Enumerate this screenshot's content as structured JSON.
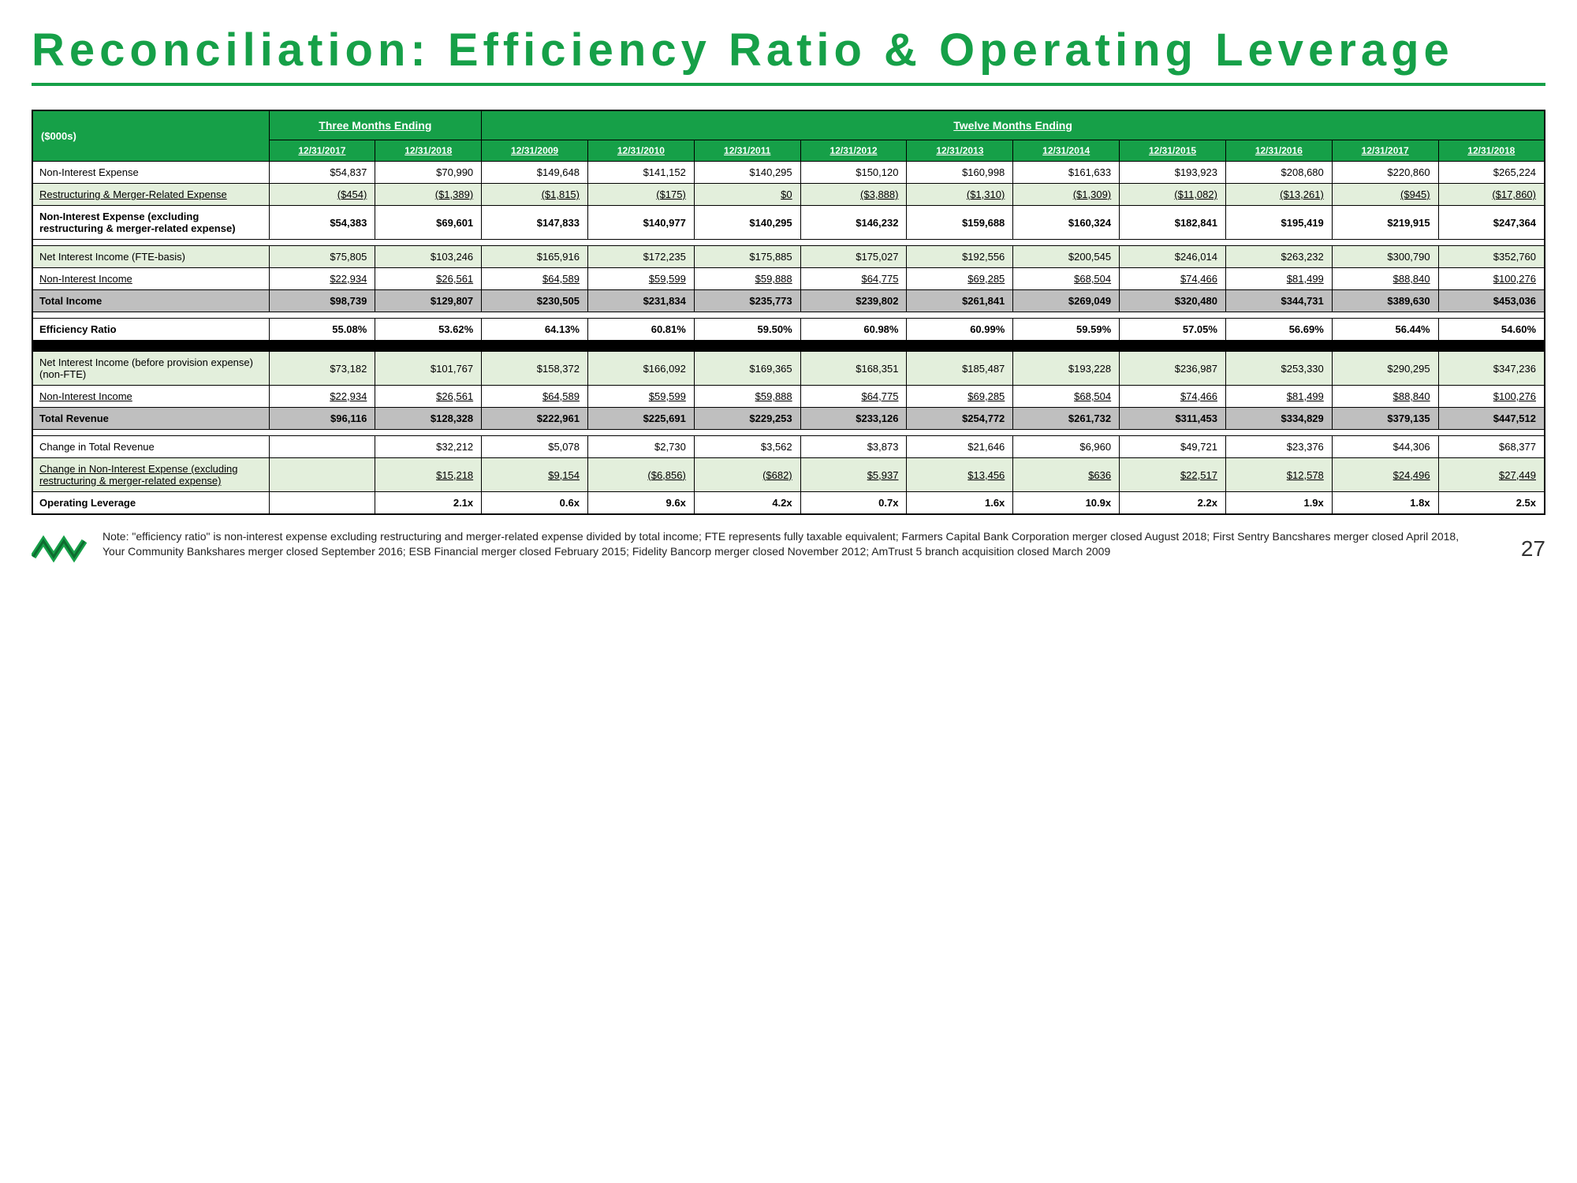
{
  "title": "Reconciliation: Efficiency Ratio & Operating Leverage",
  "units_label": "($000s)",
  "period_headers": {
    "three_month": "Three Months Ending",
    "twelve_month": "Twelve Months Ending"
  },
  "date_cols": [
    "12/31/2017",
    "12/31/2018",
    "12/31/2009",
    "12/31/2010",
    "12/31/2011",
    "12/31/2012",
    "12/31/2013",
    "12/31/2014",
    "12/31/2015",
    "12/31/2016",
    "12/31/2017",
    "12/31/2018"
  ],
  "rows": {
    "non_interest_expense": {
      "label": "Non-Interest Expense",
      "vals": [
        "$54,837",
        "$70,990",
        "$149,648",
        "$141,152",
        "$140,295",
        "$150,120",
        "$160,998",
        "$161,633",
        "$193,923",
        "$208,680",
        "$220,860",
        "$265,224"
      ]
    },
    "restructuring": {
      "label": "Restructuring & Merger-Related Expense",
      "vals": [
        "($454)",
        "($1,389)",
        "($1,815)",
        "($175)",
        "$0",
        "($3,888)",
        "($1,310)",
        "($1,309)",
        "($11,082)",
        "($13,261)",
        "($945)",
        "($17,860)"
      ]
    },
    "nie_excl": {
      "label": "Non-Interest Expense (excluding restructuring & merger-related expense)",
      "vals": [
        "$54,383",
        "$69,601",
        "$147,833",
        "$140,977",
        "$140,295",
        "$146,232",
        "$159,688",
        "$160,324",
        "$182,841",
        "$195,419",
        "$219,915",
        "$247,364"
      ]
    },
    "nii_fte": {
      "label": "Net Interest Income (FTE-basis)",
      "vals": [
        "$75,805",
        "$103,246",
        "$165,916",
        "$172,235",
        "$175,885",
        "$175,027",
        "$192,556",
        "$200,545",
        "$246,014",
        "$263,232",
        "$300,790",
        "$352,760"
      ]
    },
    "non_int_income1": {
      "label": "Non-Interest Income",
      "vals": [
        "$22,934",
        "$26,561",
        "$64,589",
        "$59,599",
        "$59,888",
        "$64,775",
        "$69,285",
        "$68,504",
        "$74,466",
        "$81,499",
        "$88,840",
        "$100,276"
      ]
    },
    "total_income": {
      "label": "Total Income",
      "vals": [
        "$98,739",
        "$129,807",
        "$230,505",
        "$231,834",
        "$235,773",
        "$239,802",
        "$261,841",
        "$269,049",
        "$320,480",
        "$344,731",
        "$389,630",
        "$453,036"
      ]
    },
    "eff_ratio": {
      "label": "Efficiency Ratio",
      "vals": [
        "55.08%",
        "53.62%",
        "64.13%",
        "60.81%",
        "59.50%",
        "60.98%",
        "60.99%",
        "59.59%",
        "57.05%",
        "56.69%",
        "56.44%",
        "54.60%"
      ]
    },
    "nii_prov": {
      "label": "Net Interest Income (before provision expense)(non-FTE)",
      "vals": [
        "$73,182",
        "$101,767",
        "$158,372",
        "$166,092",
        "$169,365",
        "$168,351",
        "$185,487",
        "$193,228",
        "$236,987",
        "$253,330",
        "$290,295",
        "$347,236"
      ]
    },
    "non_int_income2": {
      "label": "Non-Interest Income",
      "vals": [
        "$22,934",
        "$26,561",
        "$64,589",
        "$59,599",
        "$59,888",
        "$64,775",
        "$69,285",
        "$68,504",
        "$74,466",
        "$81,499",
        "$88,840",
        "$100,276"
      ]
    },
    "total_revenue": {
      "label": "Total Revenue",
      "vals": [
        "$96,116",
        "$128,328",
        "$222,961",
        "$225,691",
        "$229,253",
        "$233,126",
        "$254,772",
        "$261,732",
        "$311,453",
        "$334,829",
        "$379,135",
        "$447,512"
      ]
    },
    "chg_revenue": {
      "label": "Change in Total Revenue",
      "vals": [
        "",
        "$32,212",
        "$5,078",
        "$2,730",
        "$3,562",
        "$3,873",
        "$21,646",
        "$6,960",
        "$49,721",
        "$23,376",
        "$44,306",
        "$68,377"
      ]
    },
    "chg_nie": {
      "label": "Change in Non-Interest Expense (excluding restructuring & merger-related expense)",
      "vals": [
        "",
        "$15,218",
        "$9,154",
        "($6,856)",
        "($682)",
        "$5,937",
        "$13,456",
        "$636",
        "$22,517",
        "$12,578",
        "$24,496",
        "$27,449"
      ]
    },
    "op_leverage": {
      "label": "Operating Leverage",
      "vals": [
        "",
        "2.1x",
        "0.6x",
        "9.6x",
        "4.2x",
        "0.7x",
        "1.6x",
        "10.9x",
        "2.2x",
        "1.9x",
        "1.8x",
        "2.5x"
      ]
    }
  },
  "footnote": "Note: \"efficiency ratio\" is non-interest expense excluding restructuring and merger-related expense divided by total income; FTE represents fully taxable equivalent; Farmers Capital Bank Corporation merger closed August 2018; First Sentry Bancshares merger closed April 2018, Your Community Bankshares merger closed September 2016; ESB Financial merger closed February 2015; Fidelity Bancorp merger closed November 2012; AmTrust 5 branch acquisition closed March 2009",
  "page_number": "27",
  "colors": {
    "brand": "#16a048"
  }
}
